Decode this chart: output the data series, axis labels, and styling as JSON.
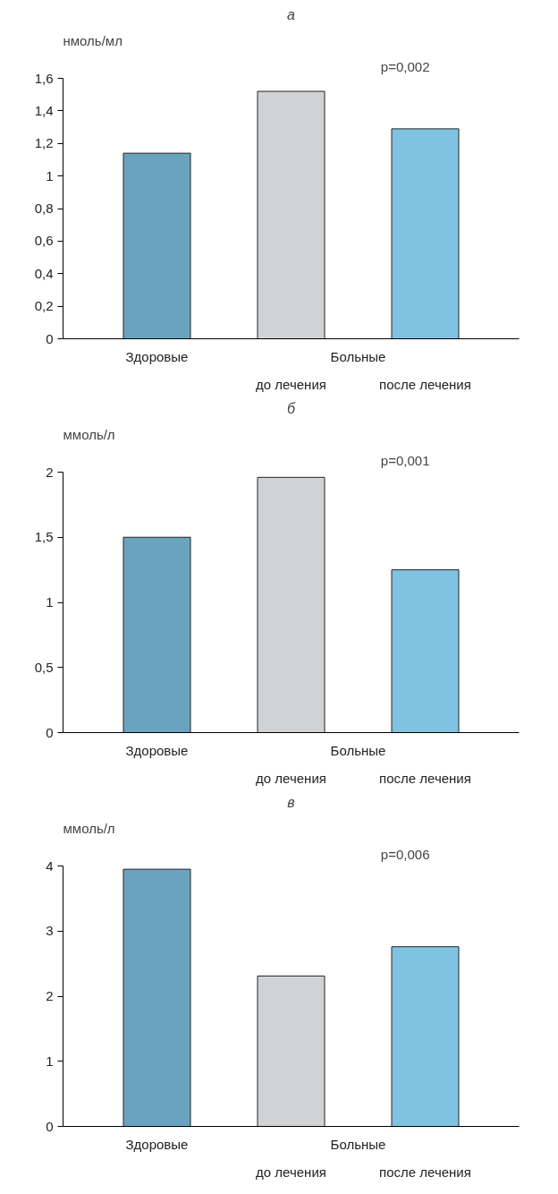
{
  "chart_data": [
    {
      "type": "bar",
      "title": "а",
      "ylabel": "нмоль/мл",
      "categories": [
        "Здоровые",
        "до лечения",
        "после лечения"
      ],
      "values": [
        1.14,
        1.52,
        1.29
      ],
      "colors": [
        "#69a3bf",
        "#d1d2d4",
        "#80c3e1"
      ],
      "ylim": [
        0,
        1.6
      ],
      "yticks": [
        0,
        {
          "value": 0.2,
          "label": "0,2"
        },
        {
          "value": 0.4,
          "label": "0,4"
        },
        {
          "value": 0.6,
          "label": "0,6"
        },
        {
          "value": 0.8,
          "label": "0,8"
        },
        1,
        {
          "value": 1.2,
          "label": "1,2"
        },
        {
          "value": 1.4,
          "label": "1,4"
        },
        {
          "value": 1.6,
          "label": "1,6"
        }
      ],
      "grid": false,
      "annotations": [
        "p=0,002",
        "Больные"
      ]
    },
    {
      "type": "bar",
      "title": "б",
      "ylabel": "ммоль/л",
      "categories": [
        "Здоровые",
        "до лечения",
        "после лечения"
      ],
      "values": [
        1.5,
        1.96,
        1.25
      ],
      "colors": [
        "#69a3bf",
        "#d1d2d4",
        "#80c3e1"
      ],
      "ylim": [
        0,
        2
      ],
      "yticks": [
        0,
        {
          "value": 0.5,
          "label": "0,5"
        },
        1,
        {
          "value": 1.5,
          "label": "1,5"
        },
        2
      ],
      "grid": false,
      "annotations": [
        "p=0,001",
        "Больные"
      ]
    },
    {
      "type": "bar",
      "title": "в",
      "ylabel": "ммоль/л",
      "categories": [
        "Здоровые",
        "до лечения",
        "после лечения"
      ],
      "values": [
        3.95,
        2.31,
        2.76
      ],
      "colors": [
        "#69a3bf",
        "#d1d2d4",
        "#80c3e1"
      ],
      "ylim": [
        0,
        4
      ],
      "yticks": [
        0,
        1,
        2,
        3,
        4
      ],
      "grid": false,
      "annotations": [
        "p=0,006",
        "Больные"
      ]
    }
  ]
}
